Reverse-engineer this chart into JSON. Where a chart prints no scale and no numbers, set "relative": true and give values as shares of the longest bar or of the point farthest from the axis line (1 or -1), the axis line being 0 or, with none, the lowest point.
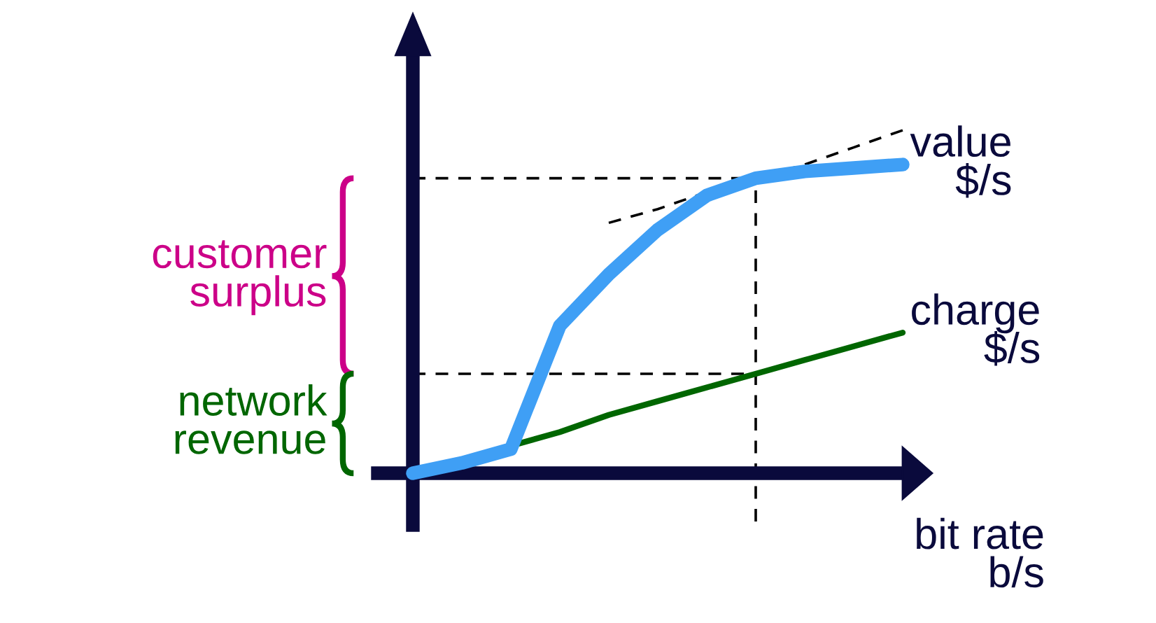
{
  "chart_data": {
    "type": "line",
    "relative": true,
    "xlabel": "bit rate\nb/s",
    "categories": [
      null,
      null,
      null,
      null,
      null,
      null,
      null,
      null,
      null,
      null,
      null
    ],
    "series": [
      {
        "name": "value\n$/s",
        "color": "#3f9ff5",
        "line_style": "solid",
        "values": [
          0,
          0.03,
          0.07,
          0.43,
          0.58,
          0.71,
          0.81,
          0.86,
          0.88,
          0.89,
          0.9
        ]
      },
      {
        "name": "charge\n$/s",
        "color": "#006600",
        "line_style": "solid",
        "values": [
          0,
          null,
          null,
          0.12,
          0.17,
          0.21,
          0.25,
          0.29,
          0.33,
          0.37,
          0.41
        ]
      },
      {
        "color": "#000000",
        "line_style": "dashed",
        "values": [
          null,
          null,
          null,
          null,
          0.73,
          0.77,
          0.82,
          0.86,
          0.9,
          0.95,
          1.0
        ]
      }
    ],
    "ref_lines": [
      {
        "axis": "y",
        "value": 0.86,
        "color": "#000000",
        "line_style": "dashed"
      },
      {
        "axis": "y",
        "value": 0.29,
        "color": "#000000",
        "line_style": "dashed"
      }
    ],
    "annotations": [
      "customer\nsurplus",
      "network\nrevenue"
    ]
  }
}
